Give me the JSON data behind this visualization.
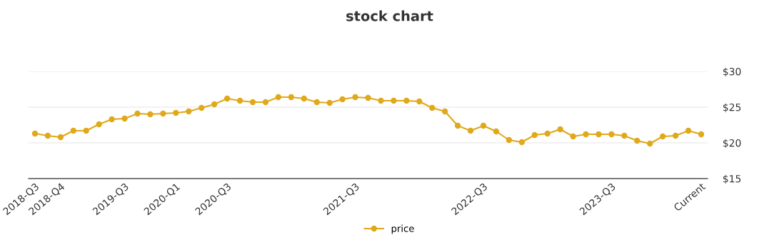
{
  "chart_data": {
    "type": "line",
    "title": "stock chart",
    "categories": [
      "2018-Q3",
      null,
      "2018-Q4",
      null,
      null,
      null,
      null,
      "2019-Q3",
      null,
      null,
      null,
      "2020-Q1",
      null,
      null,
      null,
      "2020-Q3",
      null,
      null,
      null,
      null,
      null,
      null,
      null,
      null,
      null,
      "2021-Q3",
      null,
      null,
      null,
      null,
      null,
      null,
      null,
      null,
      null,
      "2022-Q3",
      null,
      null,
      null,
      null,
      null,
      null,
      null,
      null,
      null,
      "2023-Q3",
      null,
      null,
      null,
      null,
      null,
      null,
      "Current"
    ],
    "series": [
      {
        "name": "price",
        "color": "#e0a91b",
        "values": [
          21.3,
          21.0,
          20.8,
          21.7,
          21.7,
          22.6,
          23.3,
          23.4,
          24.1,
          24.0,
          24.1,
          24.2,
          24.4,
          24.9,
          25.4,
          26.2,
          25.9,
          25.7,
          25.7,
          26.4,
          26.4,
          26.2,
          25.7,
          25.6,
          26.1,
          26.4,
          26.3,
          25.9,
          25.9,
          25.9,
          25.8,
          24.9,
          24.4,
          22.4,
          21.7,
          22.4,
          21.6,
          20.4,
          20.1,
          21.1,
          21.3,
          21.9,
          20.9,
          21.2,
          21.2,
          21.2,
          21.0,
          20.3,
          19.9,
          20.9,
          21.0,
          21.7,
          21.2
        ]
      }
    ],
    "ylim": [
      15,
      30
    ],
    "yticks": [
      {
        "value": 15,
        "label": "$15"
      },
      {
        "value": 20,
        "label": "$20"
      },
      {
        "value": 25,
        "label": "$25"
      },
      {
        "value": 30,
        "label": "$30"
      }
    ],
    "grid": "y",
    "legend": "bottom",
    "marker": "circle",
    "line_style": "solid"
  }
}
